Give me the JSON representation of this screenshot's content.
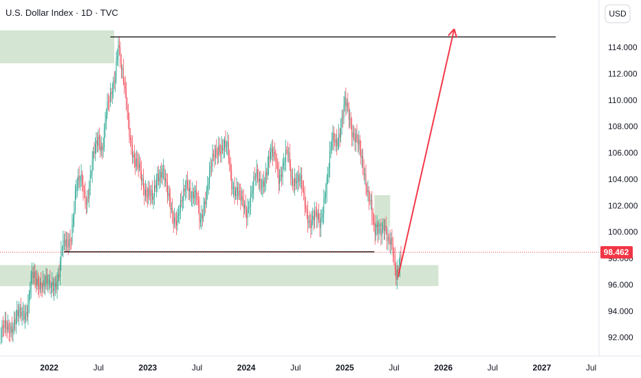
{
  "header": {
    "title": "U.S. Dollar Index · 1D · TVC"
  },
  "price_scale": {
    "unit_label": "USD"
  },
  "colors": {
    "up": "#089981",
    "down": "#f23645",
    "zone": "#d4e6d3",
    "arrow": "#f23645",
    "level_line": "#000000",
    "last_price_bg": "#f23645"
  },
  "chart_data": {
    "type": "candlestick",
    "title": "U.S. Dollar Index · 1D · TVC",
    "ylim": [
      90.6,
      117.6
    ],
    "xlim": [
      2021.5,
      2027.58
    ],
    "y_ticks": [
      "114.000",
      "112.000",
      "110.000",
      "108.000",
      "106.000",
      "104.000",
      "102.000",
      "100.000",
      "98.000",
      "96.000",
      "94.000",
      "92.000"
    ],
    "y_tick_values": [
      114,
      112,
      110,
      108,
      106,
      104,
      102,
      100,
      98,
      96,
      94,
      92
    ],
    "x_ticks": [
      {
        "label": "2022",
        "t": 2022.0,
        "year": true
      },
      {
        "label": "Jul",
        "t": 2022.5,
        "year": false
      },
      {
        "label": "2023",
        "t": 2023.0,
        "year": true
      },
      {
        "label": "Jul",
        "t": 2023.5,
        "year": false
      },
      {
        "label": "2024",
        "t": 2024.0,
        "year": true
      },
      {
        "label": "Jul",
        "t": 2024.5,
        "year": false
      },
      {
        "label": "2025",
        "t": 2025.0,
        "year": true
      },
      {
        "label": "Jul",
        "t": 2025.5,
        "year": false
      },
      {
        "label": "2026",
        "t": 2026.0,
        "year": true
      },
      {
        "label": "Jul",
        "t": 2026.5,
        "year": false
      },
      {
        "label": "2027",
        "t": 2027.0,
        "year": true
      },
      {
        "label": "Jul",
        "t": 2027.5,
        "year": false
      }
    ],
    "price_path": [
      [
        2021.5,
        92.0
      ],
      [
        2021.6,
        93.0
      ],
      [
        2021.7,
        93.5
      ],
      [
        2021.78,
        94.5
      ],
      [
        2021.82,
        96.5
      ],
      [
        2021.86,
        96.0
      ],
      [
        2021.92,
        96.5
      ],
      [
        2021.97,
        96.0
      ],
      [
        2022.0,
        95.5
      ],
      [
        2022.05,
        96.2
      ],
      [
        2022.1,
        97.0
      ],
      [
        2022.13,
        98.5
      ],
      [
        2022.17,
        99.0
      ],
      [
        2022.22,
        100.0
      ],
      [
        2022.27,
        103.0
      ],
      [
        2022.33,
        104.0
      ],
      [
        2022.38,
        102.5
      ],
      [
        2022.42,
        104.0
      ],
      [
        2022.46,
        106.0
      ],
      [
        2022.5,
        107.5
      ],
      [
        2022.54,
        106.5
      ],
      [
        2022.58,
        108.8
      ],
      [
        2022.62,
        110.0
      ],
      [
        2022.67,
        112.5
      ],
      [
        2022.7,
        114.5
      ],
      [
        2022.73,
        112.0
      ],
      [
        2022.78,
        110.0
      ],
      [
        2022.83,
        107.0
      ],
      [
        2022.87,
        105.0
      ],
      [
        2022.92,
        104.5
      ],
      [
        2022.97,
        103.5
      ],
      [
        2023.01,
        103.0
      ],
      [
        2023.05,
        102.0
      ],
      [
        2023.1,
        104.5
      ],
      [
        2023.15,
        105.0
      ],
      [
        2023.2,
        102.5
      ],
      [
        2023.25,
        101.5
      ],
      [
        2023.3,
        101.2
      ],
      [
        2023.35,
        102.0
      ],
      [
        2023.4,
        104.0
      ],
      [
        2023.45,
        103.0
      ],
      [
        2023.5,
        102.2
      ],
      [
        2023.53,
        100.5
      ],
      [
        2023.57,
        102.5
      ],
      [
        2023.62,
        104.0
      ],
      [
        2023.67,
        105.5
      ],
      [
        2023.72,
        106.8
      ],
      [
        2023.76,
        106.5
      ],
      [
        2023.81,
        106.0
      ],
      [
        2023.85,
        103.8
      ],
      [
        2023.9,
        103.5
      ],
      [
        2023.95,
        102.0
      ],
      [
        2024.0,
        101.5
      ],
      [
        2024.04,
        103.0
      ],
      [
        2024.09,
        104.0
      ],
      [
        2024.14,
        103.5
      ],
      [
        2024.18,
        104.3
      ],
      [
        2024.24,
        105.5
      ],
      [
        2024.3,
        105.7
      ],
      [
        2024.33,
        104.5
      ],
      [
        2024.37,
        104.8
      ],
      [
        2024.42,
        105.8
      ],
      [
        2024.46,
        104.2
      ],
      [
        2024.5,
        104.3
      ],
      [
        2024.55,
        103.5
      ],
      [
        2024.6,
        102.0
      ],
      [
        2024.65,
        101.0
      ],
      [
        2024.7,
        100.9
      ],
      [
        2024.75,
        100.6
      ],
      [
        2024.79,
        103.0
      ],
      [
        2024.83,
        104.3
      ],
      [
        2024.87,
        106.7
      ],
      [
        2024.91,
        107.0
      ],
      [
        2024.96,
        108.2
      ],
      [
        2025.0,
        109.5
      ],
      [
        2025.03,
        109.0
      ],
      [
        2025.07,
        108.0
      ],
      [
        2025.12,
        107.3
      ],
      [
        2025.17,
        105.0
      ],
      [
        2025.21,
        104.0
      ],
      [
        2025.26,
        102.7
      ],
      [
        2025.3,
        99.5
      ],
      [
        2025.35,
        100.1
      ],
      [
        2025.4,
        101.0
      ],
      [
        2025.44,
        99.0
      ],
      [
        2025.48,
        98.6
      ],
      [
        2025.52,
        97.0
      ],
      [
        2025.55,
        98.0
      ],
      [
        2025.57,
        98.462
      ]
    ],
    "current_price": 98.462,
    "current_price_label": "98.462",
    "zones": [
      {
        "t0": 2021.5,
        "t1": 2022.66,
        "y0": 112.8,
        "y1": 115.3
      },
      {
        "t0": 2021.5,
        "t1": 2025.95,
        "y0": 95.9,
        "y1": 97.5
      },
      {
        "t0": 2025.3,
        "t1": 2025.46,
        "y0": 100.4,
        "y1": 102.8
      }
    ],
    "levels": [
      {
        "t0": 2022.62,
        "t1": 2027.14,
        "y": 114.8
      },
      {
        "t0": 2022.15,
        "t1": 2025.3,
        "y": 98.5
      }
    ],
    "projection": {
      "t0": 2025.54,
      "y0": 96.6,
      "t1": 2026.11,
      "y1": 115.4
    }
  }
}
